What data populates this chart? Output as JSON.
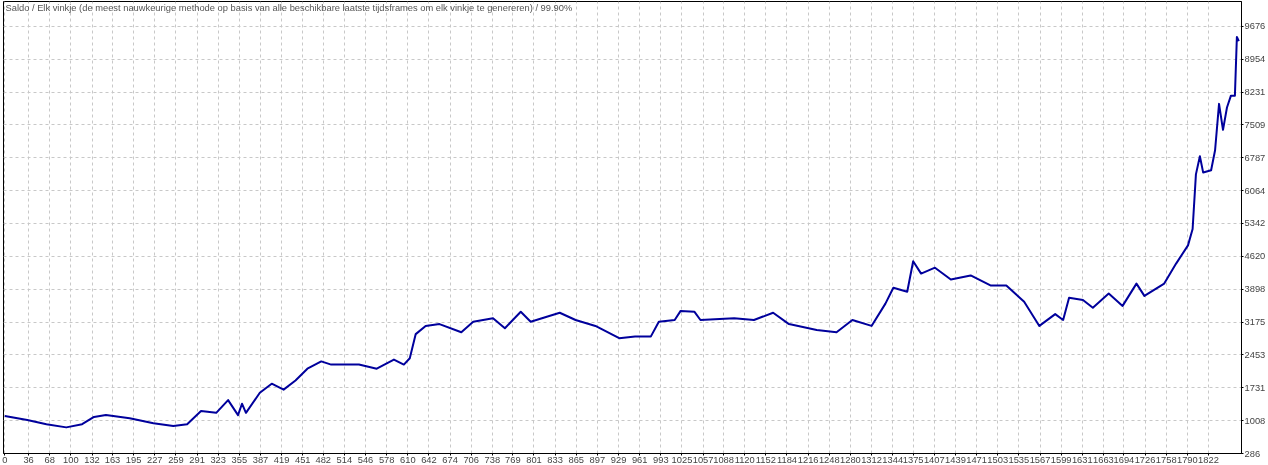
{
  "chart_data": {
    "type": "line",
    "title": "Saldo / Elk vinkje (de meest nauwkeurige methode op basis van alle beschikbare laatste tijdsframes om elk vinkje te genereren) / 99.90%",
    "xlim": [
      -2,
      1872
    ],
    "ylim": [
      286,
      10220
    ],
    "xticks": [
      0,
      36,
      68,
      100,
      132,
      163,
      195,
      227,
      259,
      291,
      323,
      355,
      387,
      419,
      451,
      482,
      514,
      546,
      578,
      610,
      642,
      674,
      706,
      738,
      769,
      801,
      833,
      865,
      897,
      929,
      961,
      993,
      1025,
      1057,
      1088,
      1120,
      1152,
      1184,
      1216,
      1248,
      1280,
      1312,
      1344,
      1375,
      1407,
      1439,
      1471,
      1503,
      1535,
      1567,
      1599,
      1631,
      1663,
      1694,
      1726,
      1758,
      1790,
      1822
    ],
    "yticks": [
      286,
      1008,
      1731,
      2453,
      3175,
      3898,
      4620,
      5342,
      6064,
      6787,
      7509,
      8231,
      8954,
      9676
    ],
    "grid": true,
    "marker": "none",
    "line_style": "solid",
    "series": [
      {
        "color": "#00009c",
        "x": [
          0,
          34,
          63,
          93,
          117,
          135,
          153,
          189,
          225,
          255,
          276,
          297,
          320,
          338,
          353,
          359,
          365,
          386,
          404,
          422,
          440,
          458,
          479,
          494,
          536,
          563,
          589,
          604,
          613,
          622,
          637,
          658,
          691,
          709,
          739,
          757,
          781,
          796,
          840,
          864,
          894,
          930,
          954,
          978,
          990,
          1014,
          1023,
          1044,
          1053,
          1104,
          1134,
          1163,
          1187,
          1229,
          1259,
          1283,
          1312,
          1333,
          1345,
          1366,
          1375,
          1387,
          1408,
          1432,
          1462,
          1492,
          1516,
          1543,
          1566,
          1590,
          1602,
          1611,
          1632,
          1647,
          1671,
          1692,
          1713,
          1725,
          1755,
          1773,
          1791,
          1798,
          1803,
          1809,
          1814,
          1826,
          1832,
          1838,
          1844,
          1850,
          1856,
          1862,
          1865,
          1868
        ],
        "values": [
          1110,
          1020,
          930,
          860,
          930,
          1090,
          1130,
          1060,
          950,
          890,
          930,
          1220,
          1180,
          1460,
          1130,
          1380,
          1180,
          1620,
          1820,
          1690,
          1890,
          2150,
          2310,
          2240,
          2240,
          2150,
          2350,
          2240,
          2380,
          2910,
          3090,
          3130,
          2950,
          3180,
          3260,
          3040,
          3400,
          3180,
          3380,
          3220,
          3090,
          2820,
          2860,
          2860,
          3180,
          3220,
          3420,
          3400,
          3220,
          3260,
          3220,
          3380,
          3130,
          3000,
          2950,
          3220,
          3090,
          3580,
          3930,
          3840,
          4510,
          4240,
          4370,
          4110,
          4200,
          3980,
          3980,
          3620,
          3090,
          3350,
          3220,
          3710,
          3660,
          3490,
          3800,
          3530,
          4020,
          3750,
          4020,
          4460,
          4860,
          5220,
          6420,
          6820,
          6460,
          6510,
          6950,
          7970,
          7400,
          7890,
          8150,
          8150,
          9440,
          9350
        ]
      }
    ]
  }
}
